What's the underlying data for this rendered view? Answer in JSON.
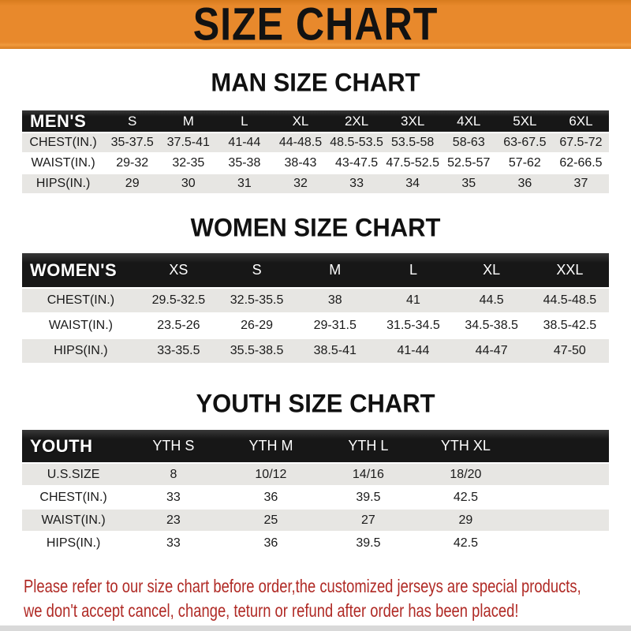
{
  "banner": {
    "title": "SIZE CHART"
  },
  "colors": {
    "banner_bg": "#E8892C",
    "header_bar": "#171717",
    "stripe": "#E7E6E3",
    "footer_text": "#B02A25",
    "bottom_strip": "#D9D9D9"
  },
  "sections": [
    {
      "heading": "MAN SIZE CHART",
      "table": {
        "header_label": "MEN'S",
        "columns": [
          "S",
          "M",
          "L",
          "XL",
          "2XL",
          "3XL",
          "4XL",
          "5XL",
          "6XL"
        ],
        "has_trailing_spacer": false,
        "rows": [
          {
            "label": "CHEST(IN.)",
            "values": [
              "35-37.5",
              "37.5-41",
              "41-44",
              "44-48.5",
              "48.5-53.5",
              "53.5-58",
              "58-63",
              "63-67.5",
              "67.5-72"
            ]
          },
          {
            "label": "WAIST(IN.)",
            "values": [
              "29-32",
              "32-35",
              "35-38",
              "38-43",
              "43-47.5",
              "47.5-52.5",
              "52.5-57",
              "57-62",
              "62-66.5"
            ]
          },
          {
            "label": "HIPS(IN.)",
            "values": [
              "29",
              "30",
              "31",
              "32",
              "33",
              "34",
              "35",
              "36",
              "37"
            ]
          }
        ]
      }
    },
    {
      "heading": "WOMEN SIZE CHART",
      "table": {
        "header_label": "WOMEN'S",
        "columns": [
          "XS",
          "S",
          "M",
          "L",
          "XL",
          "XXL"
        ],
        "has_trailing_spacer": false,
        "rows": [
          {
            "label": "CHEST(IN.)",
            "values": [
              "29.5-32.5",
              "32.5-35.5",
              "38",
              "41",
              "44.5",
              "44.5-48.5"
            ]
          },
          {
            "label": "WAIST(IN.)",
            "values": [
              "23.5-26",
              "26-29",
              "29-31.5",
              "31.5-34.5",
              "34.5-38.5",
              "38.5-42.5"
            ]
          },
          {
            "label": "HIPS(IN.)",
            "values": [
              "33-35.5",
              "35.5-38.5",
              "38.5-41",
              "41-44",
              "44-47",
              "47-50"
            ]
          }
        ]
      }
    },
    {
      "heading": "YOUTH SIZE CHART",
      "table": {
        "header_label": "YOUTH",
        "columns": [
          "YTH S",
          "YTH M",
          "YTH L",
          "YTH XL"
        ],
        "has_trailing_spacer": true,
        "rows": [
          {
            "label": "U.S.SIZE",
            "values": [
              "8",
              "10/12",
              "14/16",
              "18/20"
            ]
          },
          {
            "label": "CHEST(IN.)",
            "values": [
              "33",
              "36",
              "39.5",
              "42.5"
            ]
          },
          {
            "label": "WAIST(IN.)",
            "values": [
              "23",
              "25",
              "27",
              "29"
            ]
          },
          {
            "label": "HIPS(IN.)",
            "values": [
              "33",
              "36",
              "39.5",
              "42.5"
            ]
          }
        ]
      }
    }
  ],
  "footer": {
    "line1": "Please refer to our size chart before order,the customized jerseys are special products,",
    "line2": "we don't accept cancel, change, teturn or refund after order has been placed!"
  }
}
